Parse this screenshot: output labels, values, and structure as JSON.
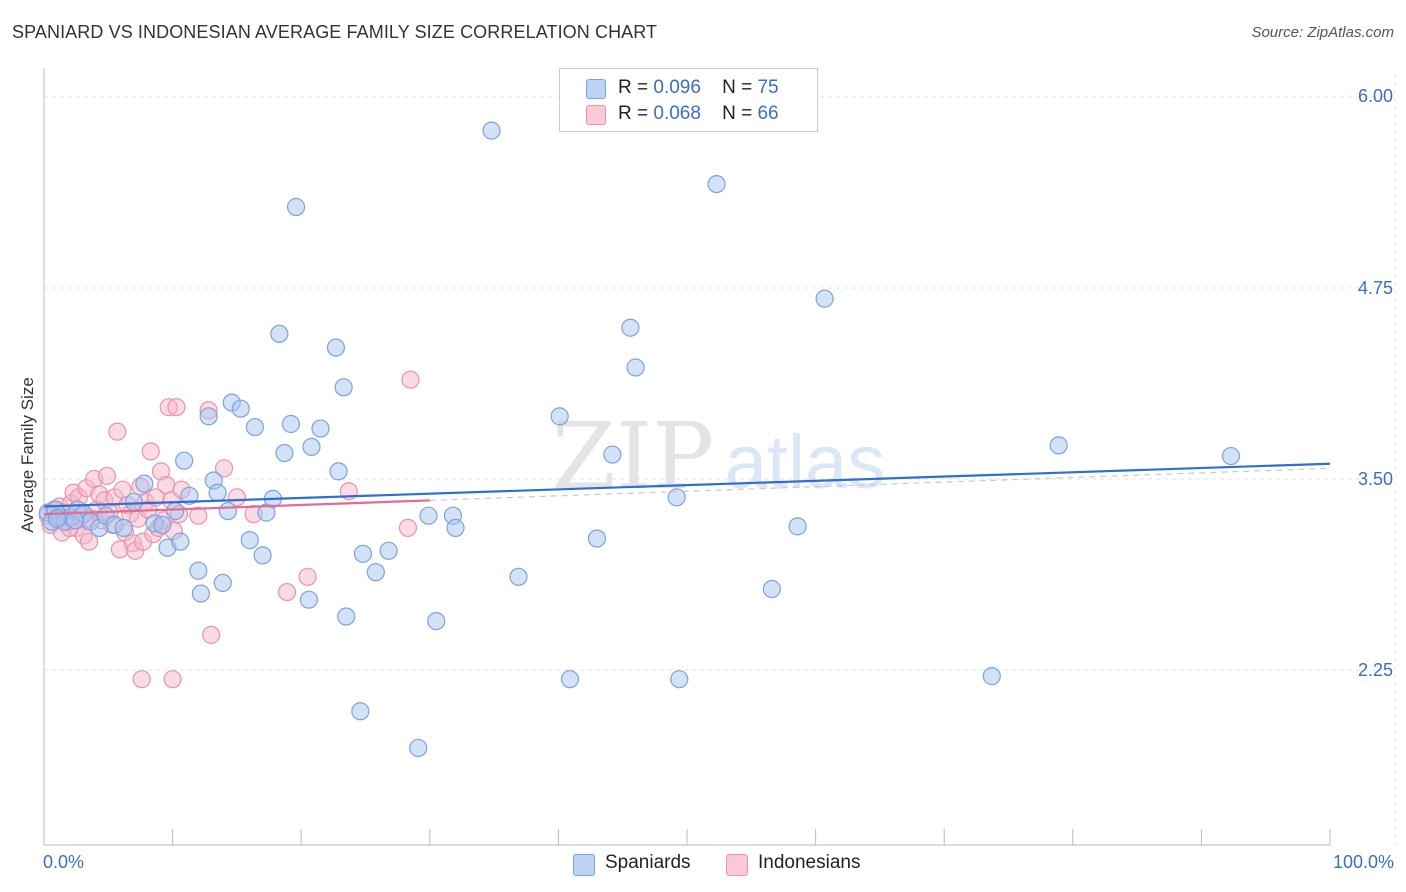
{
  "header": {
    "title": "SPANIARD VS INDONESIAN AVERAGE FAMILY SIZE CORRELATION CHART",
    "source": "Source: ZipAtlas.com"
  },
  "watermark": {
    "zip": "ZIP",
    "atlas": "atlas"
  },
  "legend_top": [
    {
      "r_label": "R =",
      "r_value": "0.096",
      "n_label": "N =",
      "n_value": "75",
      "color": "#9dbff0"
    },
    {
      "r_label": "R =",
      "r_value": "0.068",
      "n_label": "N =",
      "n_value": "66",
      "color": "#f4a9c0"
    }
  ],
  "legend_bottom": [
    {
      "label": "Spaniards",
      "color": "#9dbff0"
    },
    {
      "label": "Indonesians",
      "color": "#f4a9c0"
    }
  ],
  "x_tick_labels": {
    "left": "0.0%",
    "right": "100.0%"
  },
  "y_tick_labels": [
    "6.00",
    "4.75",
    "3.50",
    "2.25"
  ],
  "colors": {
    "blue_fill": "#a9c6f0",
    "blue_stroke": "#7aa3de",
    "blue_line": "#2f6fd0",
    "pink_fill": "#f6b8cb",
    "pink_stroke": "#e993ad",
    "pink_line": "#e36b95",
    "tick_text": "#3a6fc4",
    "grid": "#e3e3e3"
  },
  "chart_data": {
    "type": "scatter",
    "title": "SPANIARD VS INDONESIAN AVERAGE FAMILY SIZE CORRELATION CHART",
    "xlabel": "",
    "ylabel": "Average Family Size",
    "xlim": [
      0,
      100
    ],
    "ylim": [
      1.2,
      6.1
    ],
    "y_ticks": [
      6.0,
      4.75,
      3.5,
      2.25
    ],
    "x_tick_labels": [
      "0.0%",
      "100.0%"
    ],
    "grid": true,
    "legend_placement": "top-center",
    "series": [
      {
        "name": "Spaniards",
        "R": 0.096,
        "N": 75,
        "trend": {
          "x": [
            0,
            100
          ],
          "y": [
            3.32,
            3.6
          ]
        },
        "points": [
          [
            0.3,
            3.28
          ],
          [
            0.6,
            3.22
          ],
          [
            0.9,
            3.3
          ],
          [
            1.2,
            3.25
          ],
          [
            1.6,
            3.22
          ],
          [
            2.1,
            3.25
          ],
          [
            2.6,
            3.3
          ],
          [
            3.1,
            3.27
          ],
          [
            3.6,
            3.22
          ],
          [
            4.3,
            3.18
          ],
          [
            4.8,
            3.26
          ],
          [
            5.5,
            3.2
          ],
          [
            6.2,
            3.18
          ],
          [
            7.0,
            3.35
          ],
          [
            7.8,
            3.47
          ],
          [
            8.6,
            3.21
          ],
          [
            9.2,
            3.2
          ],
          [
            9.6,
            3.05
          ],
          [
            10.2,
            3.29
          ],
          [
            10.6,
            3.09
          ],
          [
            10.9,
            3.62
          ],
          [
            11.3,
            3.39
          ],
          [
            12.0,
            2.9
          ],
          [
            12.2,
            2.75
          ],
          [
            12.8,
            3.91
          ],
          [
            13.2,
            3.49
          ],
          [
            13.5,
            3.41
          ],
          [
            13.9,
            2.82
          ],
          [
            14.3,
            3.29
          ],
          [
            14.6,
            4.0
          ],
          [
            15.3,
            3.96
          ],
          [
            16.0,
            3.1
          ],
          [
            16.4,
            3.84
          ],
          [
            17.0,
            3.0
          ],
          [
            17.3,
            3.28
          ],
          [
            17.8,
            3.37
          ],
          [
            18.3,
            4.45
          ],
          [
            18.7,
            3.67
          ],
          [
            19.2,
            3.86
          ],
          [
            19.6,
            5.28
          ],
          [
            20.6,
            2.71
          ],
          [
            20.8,
            3.71
          ],
          [
            21.5,
            3.83
          ],
          [
            22.7,
            4.36
          ],
          [
            22.9,
            3.55
          ],
          [
            23.3,
            4.1
          ],
          [
            23.5,
            2.6
          ],
          [
            24.6,
            1.98
          ],
          [
            24.8,
            3.01
          ],
          [
            25.8,
            2.89
          ],
          [
            26.8,
            3.03
          ],
          [
            29.1,
            1.74
          ],
          [
            29.9,
            3.26
          ],
          [
            30.5,
            2.57
          ],
          [
            31.8,
            3.26
          ],
          [
            32.0,
            3.18
          ],
          [
            34.8,
            5.78
          ],
          [
            36.9,
            2.86
          ],
          [
            40.1,
            3.91
          ],
          [
            40.9,
            2.19
          ],
          [
            43.0,
            3.11
          ],
          [
            44.2,
            3.66
          ],
          [
            45.6,
            4.49
          ],
          [
            46.0,
            4.23
          ],
          [
            49.2,
            3.38
          ],
          [
            49.4,
            2.19
          ],
          [
            52.3,
            5.43
          ],
          [
            56.6,
            2.78
          ],
          [
            58.6,
            3.19
          ],
          [
            60.7,
            4.68
          ],
          [
            73.7,
            2.21
          ],
          [
            78.9,
            3.72
          ],
          [
            92.3,
            3.65
          ],
          [
            1.0,
            3.24
          ],
          [
            2.4,
            3.23
          ]
        ]
      },
      {
        "name": "Indonesians",
        "R": 0.068,
        "N": 66,
        "trend": {
          "x": [
            0,
            30
          ],
          "y": [
            3.27,
            3.36
          ]
        },
        "points": [
          [
            0.3,
            3.26
          ],
          [
            0.5,
            3.2
          ],
          [
            0.8,
            3.3
          ],
          [
            1.0,
            3.24
          ],
          [
            1.2,
            3.32
          ],
          [
            1.4,
            3.15
          ],
          [
            1.6,
            3.28
          ],
          [
            1.9,
            3.22
          ],
          [
            2.1,
            3.34
          ],
          [
            2.3,
            3.41
          ],
          [
            2.5,
            3.18
          ],
          [
            2.7,
            3.38
          ],
          [
            2.9,
            3.26
          ],
          [
            3.1,
            3.13
          ],
          [
            3.3,
            3.44
          ],
          [
            3.5,
            3.09
          ],
          [
            3.7,
            3.24
          ],
          [
            3.9,
            3.5
          ],
          [
            4.1,
            3.3
          ],
          [
            4.3,
            3.4
          ],
          [
            4.5,
            3.23
          ],
          [
            4.7,
            3.36
          ],
          [
            4.9,
            3.52
          ],
          [
            5.1,
            3.28
          ],
          [
            5.3,
            3.2
          ],
          [
            5.5,
            3.38
          ],
          [
            5.7,
            3.81
          ],
          [
            5.9,
            3.04
          ],
          [
            6.1,
            3.43
          ],
          [
            6.3,
            3.15
          ],
          [
            6.5,
            3.33
          ],
          [
            6.7,
            3.27
          ],
          [
            6.9,
            3.08
          ],
          [
            7.1,
            3.03
          ],
          [
            7.3,
            3.24
          ],
          [
            7.5,
            3.45
          ],
          [
            7.7,
            3.09
          ],
          [
            7.9,
            3.35
          ],
          [
            8.1,
            3.3
          ],
          [
            8.3,
            3.68
          ],
          [
            8.5,
            3.14
          ],
          [
            8.7,
            3.38
          ],
          [
            8.9,
            3.18
          ],
          [
            9.1,
            3.55
          ],
          [
            9.3,
            3.23
          ],
          [
            9.5,
            3.46
          ],
          [
            9.7,
            3.97
          ],
          [
            9.9,
            3.36
          ],
          [
            10.1,
            3.16
          ],
          [
            10.3,
            3.97
          ],
          [
            10.5,
            3.27
          ],
          [
            10.7,
            3.43
          ],
          [
            12.0,
            3.26
          ],
          [
            12.8,
            3.95
          ],
          [
            13.0,
            2.48
          ],
          [
            14.0,
            3.57
          ],
          [
            15.0,
            3.38
          ],
          [
            16.3,
            3.27
          ],
          [
            18.9,
            2.76
          ],
          [
            20.5,
            2.86
          ],
          [
            23.7,
            3.42
          ],
          [
            28.3,
            3.18
          ],
          [
            28.5,
            4.15
          ],
          [
            7.6,
            2.19
          ],
          [
            10.0,
            2.19
          ],
          [
            2.0,
            3.18
          ]
        ]
      }
    ]
  }
}
